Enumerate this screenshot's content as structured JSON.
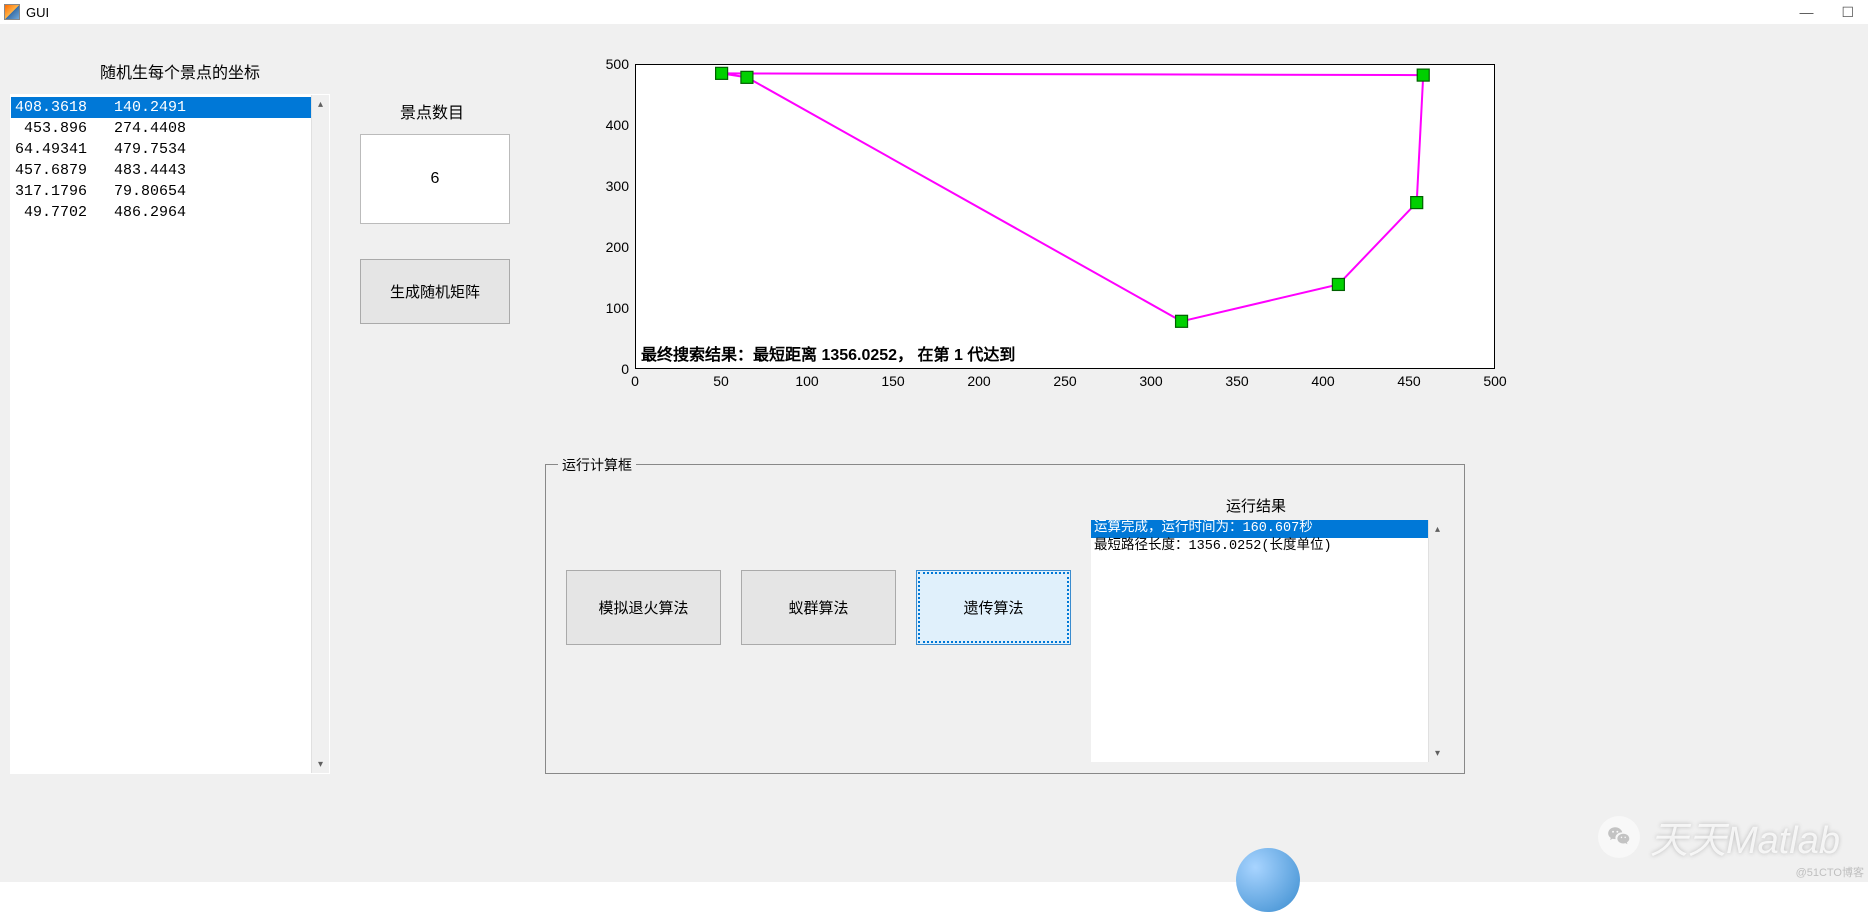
{
  "window": {
    "title": "GUI"
  },
  "labels": {
    "coords_title": "随机生每个景点的坐标",
    "count_title": "景点数目",
    "run_panel": "运行计算框",
    "result_title": "运行结果"
  },
  "count_value": "6",
  "generate_button": "生成随机矩阵",
  "coords_list": {
    "selected_index": 0,
    "rows": [
      "408.3618   140.2491",
      " 453.896   274.4408",
      "64.49341   479.7534",
      "457.6879   483.4443",
      "317.1796   79.80654",
      " 49.7702   486.2964"
    ]
  },
  "algorithm_buttons": {
    "sa": "模拟退火算法",
    "aco": "蚁群算法",
    "ga": "遗传算法"
  },
  "result_list": {
    "selected_index": 0,
    "rows": [
      "运算完成，运行时间为：160.607秒",
      "最短路径长度：1356.0252(长度单位)"
    ]
  },
  "chart": {
    "type": "line",
    "xlim": [
      0,
      500
    ],
    "ylim": [
      0,
      500
    ],
    "xtick_step": 50,
    "ytick_step": 100,
    "background_color": "#ffffff",
    "border_color": "#000000",
    "line_color": "#ff00ff",
    "line_width": 2,
    "marker_fill": "#00d000",
    "marker_edge": "#006000",
    "marker_size": 12,
    "annotation": "最终搜索结果：最短距离 1356.0252， 在第 1 代达到",
    "path_order": [
      4,
      2,
      5,
      3,
      1,
      0,
      4
    ],
    "points": [
      {
        "x": 408.36,
        "y": 140.25
      },
      {
        "x": 453.9,
        "y": 274.44
      },
      {
        "x": 64.49,
        "y": 479.75
      },
      {
        "x": 457.69,
        "y": 483.44
      },
      {
        "x": 317.18,
        "y": 79.81
      },
      {
        "x": 49.77,
        "y": 486.3
      }
    ]
  },
  "watermark": "天天Matlab",
  "attribution": "@51CTO博客"
}
